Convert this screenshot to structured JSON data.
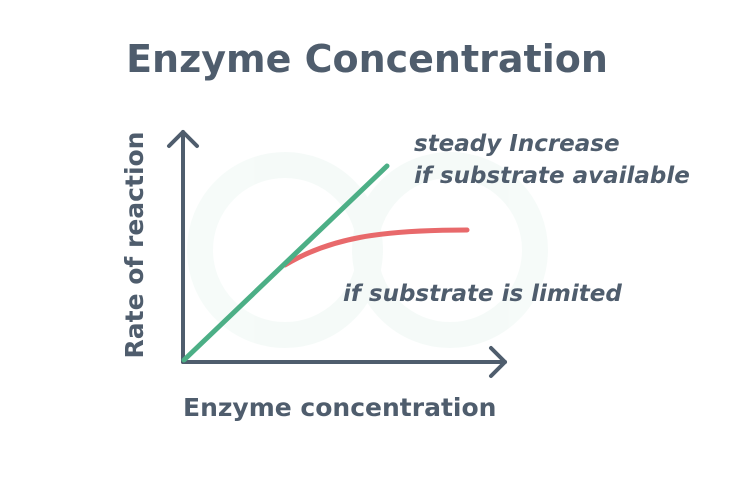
{
  "header": {
    "title": "Enzyme Concentration"
  },
  "axes": {
    "y_label": "Rate of reaction",
    "x_label": "Enzyme concentration"
  },
  "annotations": [
    {
      "lines": [
        "steady Increase",
        "if substrate available"
      ]
    },
    {
      "lines": [
        "if substrate is limited"
      ]
    }
  ]
}
